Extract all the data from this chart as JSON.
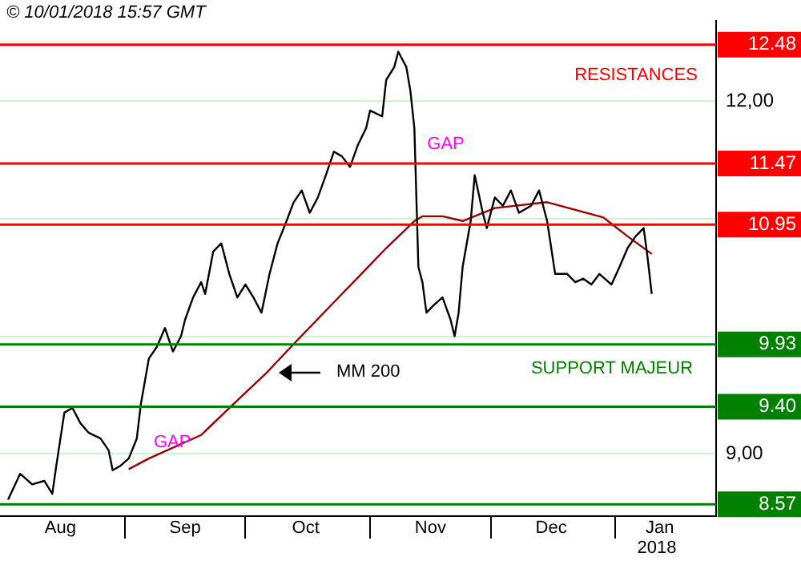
{
  "chart_data": {
    "type": "line",
    "marker": "none",
    "line_style": "solid",
    "grid": "y",
    "legend": false,
    "xlim": [
      "2017-08-01",
      "2018-01-26"
    ],
    "xticks": [
      {
        "value": "2017-08-16",
        "label": "Aug"
      },
      {
        "value": "2017-09-01",
        "label": null
      },
      {
        "value": "2017-09-16",
        "label": "Sep"
      },
      {
        "value": "2017-10-01",
        "label": null
      },
      {
        "value": "2017-10-16",
        "label": "Oct"
      },
      {
        "value": "2017-11-01",
        "label": null
      },
      {
        "value": "2017-11-16",
        "label": "Nov"
      },
      {
        "value": "2017-12-01",
        "label": null
      },
      {
        "value": "2017-12-16",
        "label": "Dec"
      },
      {
        "value": "2018-01-01",
        "label": null
      },
      {
        "value": "2018-01-12",
        "label": "Jan"
      }
    ],
    "ylim": [
      8.47,
      12.68
    ],
    "yticks": [
      {
        "value": 9,
        "label": "9,00"
      },
      {
        "value": 10,
        "label": null
      },
      {
        "value": 11,
        "label": null
      },
      {
        "value": 12,
        "label": "12,00"
      }
    ],
    "series": [
      {
        "color": "#000000",
        "x": [
          "2017-08-03",
          "2017-08-06",
          "2017-08-09",
          "2017-08-12",
          "2017-08-14",
          "2017-08-15",
          "2017-08-17",
          "2017-08-19",
          "2017-08-21",
          "2017-08-23",
          "2017-08-26",
          "2017-08-28",
          "2017-08-29",
          "2017-08-31",
          "2017-09-02",
          "2017-09-04",
          "2017-09-05",
          "2017-09-07",
          "2017-09-09",
          "2017-09-11",
          "2017-09-13",
          "2017-09-15",
          "2017-09-16",
          "2017-09-18",
          "2017-09-20",
          "2017-09-21",
          "2017-09-23",
          "2017-09-25",
          "2017-09-27",
          "2017-09-29",
          "2017-10-01",
          "2017-10-03",
          "2017-10-05",
          "2017-10-07",
          "2017-10-09",
          "2017-10-11",
          "2017-10-13",
          "2017-10-15",
          "2017-10-17",
          "2017-10-19",
          "2017-10-21",
          "2017-10-23",
          "2017-10-25",
          "2017-10-27",
          "2017-10-29",
          "2017-10-31",
          "2017-11-01",
          "2017-11-04",
          "2017-11-05",
          "2017-11-07",
          "2017-11-08",
          "2017-11-10",
          "2017-11-11",
          "2017-11-12",
          "2017-11-13",
          "2017-11-14",
          "2017-11-15",
          "2017-11-17",
          "2017-11-19",
          "2017-11-21",
          "2017-11-22",
          "2017-11-23",
          "2017-11-24",
          "2017-11-26",
          "2017-11-27",
          "2017-11-29",
          "2017-11-30",
          "2017-12-02",
          "2017-12-04",
          "2017-12-06",
          "2017-12-08",
          "2017-12-11",
          "2017-12-13",
          "2017-12-15",
          "2017-12-17",
          "2017-12-20",
          "2017-12-22",
          "2017-12-24",
          "2017-12-26",
          "2017-12-28",
          "2017-12-31",
          "2018-01-02",
          "2018-01-04",
          "2018-01-06",
          "2018-01-08",
          "2018-01-09",
          "2018-01-10"
        ],
        "values": [
          8.61,
          8.83,
          8.74,
          8.77,
          8.66,
          8.9,
          9.35,
          9.39,
          9.26,
          9.18,
          9.13,
          9.03,
          8.86,
          8.9,
          8.96,
          9.13,
          9.42,
          9.81,
          9.91,
          10.07,
          9.87,
          10.0,
          10.14,
          10.33,
          10.46,
          10.36,
          10.72,
          10.79,
          10.53,
          10.33,
          10.44,
          10.33,
          10.2,
          10.53,
          10.79,
          10.96,
          11.14,
          11.24,
          11.05,
          11.18,
          11.37,
          11.57,
          11.53,
          11.44,
          11.63,
          11.77,
          11.92,
          11.87,
          12.18,
          12.29,
          12.42,
          12.29,
          12.09,
          11.77,
          10.59,
          10.46,
          10.2,
          10.27,
          10.33,
          10.14,
          10.0,
          10.2,
          10.59,
          10.98,
          11.37,
          11.05,
          10.92,
          11.18,
          11.11,
          11.24,
          11.05,
          11.11,
          11.24,
          10.98,
          10.53,
          10.53,
          10.46,
          10.49,
          10.44,
          10.53,
          10.44,
          10.59,
          10.75,
          10.85,
          10.92,
          10.66,
          10.36
        ]
      },
      {
        "color": "#990000",
        "x": [
          "2017-09-02",
          "2017-09-07",
          "2017-09-20",
          "2017-09-27",
          "2017-10-06",
          "2017-10-14",
          "2017-10-25",
          "2017-10-29",
          "2017-11-05",
          "2017-11-12",
          "2017-11-14",
          "2017-11-19",
          "2017-11-24",
          "2017-12-02",
          "2017-12-15",
          "2017-12-29",
          "2018-01-04",
          "2018-01-10"
        ],
        "values": [
          8.87,
          8.96,
          9.16,
          9.39,
          9.68,
          9.97,
          10.36,
          10.5,
          10.75,
          10.98,
          11.02,
          11.02,
          10.98,
          11.09,
          11.14,
          11.01,
          10.85,
          10.7
        ]
      }
    ],
    "ref_lines": [
      {
        "axis": "y",
        "value": 12.48,
        "label": "12.48",
        "color": "#ff0000"
      },
      {
        "axis": "y",
        "value": 11.47,
        "label": "11.47",
        "color": "#ff0000"
      },
      {
        "axis": "y",
        "value": 10.95,
        "label": "10.95",
        "color": "#ff0000"
      },
      {
        "axis": "y",
        "value": 9.93,
        "label": "9.93",
        "color": "#008000"
      },
      {
        "axis": "y",
        "value": 9.4,
        "label": "9.40",
        "color": "#008000"
      },
      {
        "axis": "y",
        "value": 8.57,
        "label": "8.57",
        "color": "#008000"
      }
    ],
    "annotations": [
      "© 10/01/2018 15:57 GMT",
      "RESISTANCES",
      {
        "text": "GAP",
        "x": "2017-11-12",
        "y": 11.77
      },
      "GAP",
      "SUPPORT MAJEUR",
      "MM 200",
      "2018"
    ]
  }
}
